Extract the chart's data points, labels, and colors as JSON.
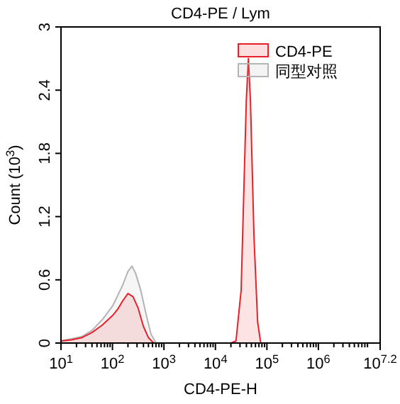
{
  "chart_data": {
    "type": "area",
    "title": "CD4-PE / Lym",
    "xlabel": "CD4-PE-H",
    "ylabel": "Count (10$^{3}$)",
    "log": "x",
    "legend": "top right",
    "grid": false,
    "xlim": [
      10,
      15848932
    ],
    "xticks": [
      {
        "value": 10,
        "label": "10$^{1}$"
      },
      {
        "value": 100,
        "label": "10$^{2}$"
      },
      {
        "value": 1000,
        "label": "10$^{3}$"
      },
      {
        "value": 10000,
        "label": "10$^{4}$"
      },
      {
        "value": 100000,
        "label": "10$^{5}$"
      },
      {
        "value": 1000000,
        "label": "10$^{6}$"
      },
      {
        "value": 15848932,
        "label": "10$^{7.2}$"
      }
    ],
    "ylim": [
      0,
      3
    ],
    "yticks": [
      0,
      0.6,
      1.2,
      1.8,
      2.4,
      3
    ],
    "series": [
      {
        "name": "同型对照",
        "color": "#b4b4b4",
        "x": [
          10,
          16,
          25,
          40,
          63,
          100,
          126,
          158,
          200,
          240,
          282,
          355,
          447,
          562,
          708
        ],
        "values": [
          0.02,
          0.04,
          0.06,
          0.12,
          0.22,
          0.35,
          0.45,
          0.55,
          0.68,
          0.73,
          0.66,
          0.5,
          0.28,
          0.08,
          0
        ]
      },
      {
        "name": "CD4-PE",
        "color": "#e8202a",
        "x": [
          10,
          16,
          25,
          40,
          63,
          100,
          126,
          158,
          200,
          251,
          316,
          398,
          501,
          631,
          20000,
          25100,
          31600,
          39800,
          43700,
          47900,
          56200,
          66100,
          75900
        ],
        "values": [
          0.02,
          0.03,
          0.05,
          0.1,
          0.17,
          0.26,
          0.32,
          0.4,
          0.47,
          0.44,
          0.33,
          0.16,
          0.05,
          0,
          0,
          0.02,
          0.5,
          2.3,
          2.7,
          2.3,
          1.0,
          0.2,
          0
        ]
      }
    ]
  }
}
